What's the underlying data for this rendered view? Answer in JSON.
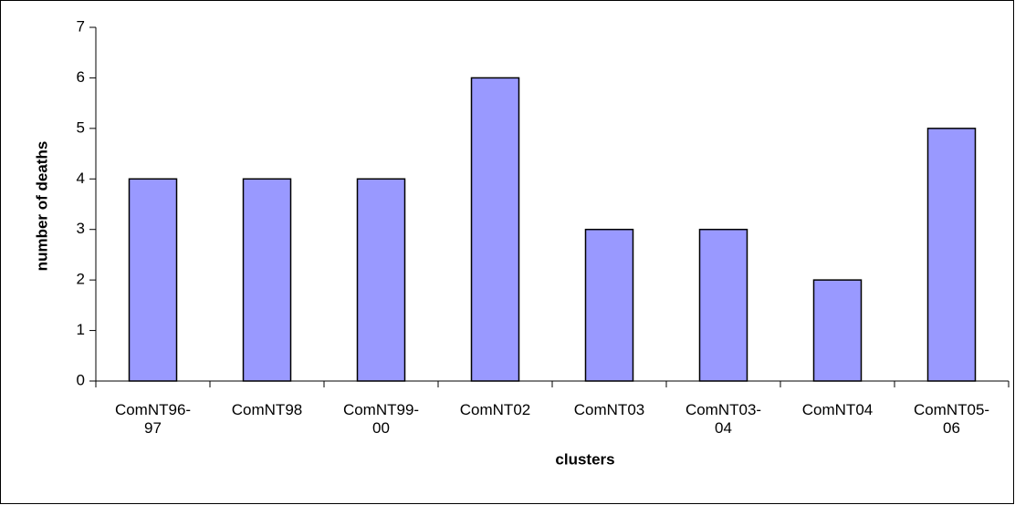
{
  "chart_data": {
    "type": "bar",
    "categories": [
      "ComNT96-97",
      "ComNT98",
      "ComNT99-00",
      "ComNT02",
      "ComNT03",
      "ComNT03-04",
      "ComNT04",
      "ComNT05-06"
    ],
    "values": [
      4,
      4,
      4,
      6,
      3,
      3,
      2,
      5
    ],
    "color": "#9999ff",
    "xlabel": "clusters",
    "ylabel": "number of deaths",
    "ylim": [
      0,
      7
    ],
    "yticks": [
      0,
      1,
      2,
      3,
      4,
      5,
      6,
      7
    ],
    "grid": false
  }
}
